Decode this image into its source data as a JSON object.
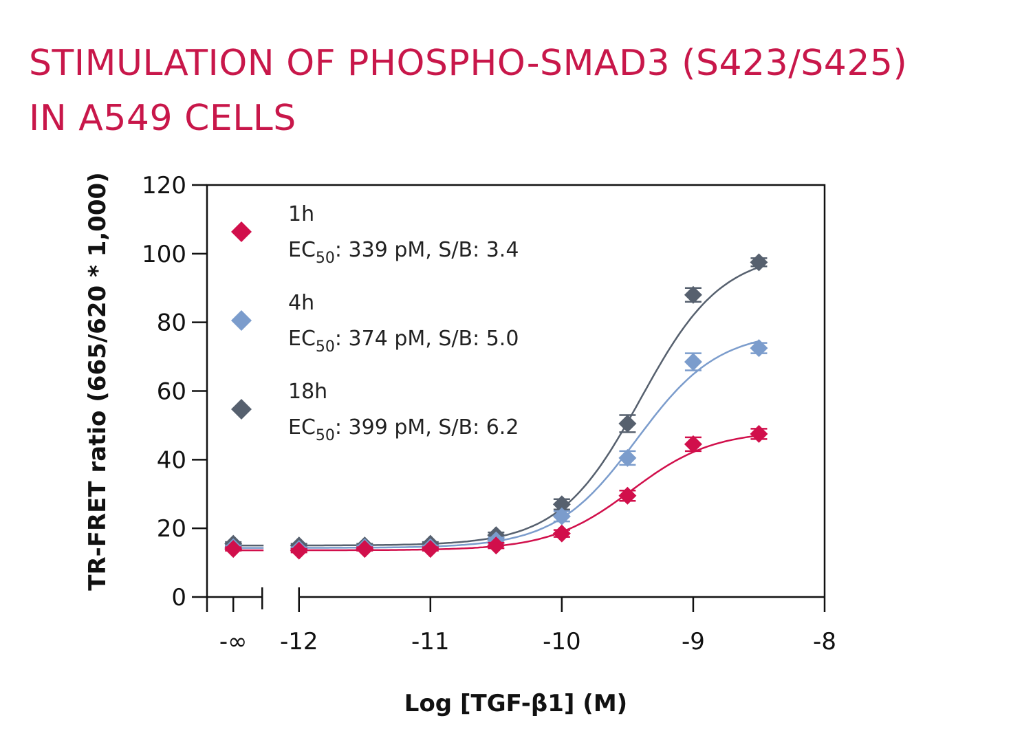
{
  "chart_data": {
    "type": "scatter",
    "title_lines": [
      "STIMULATION OF PHOSPHO-SMAD3 (S423/S425)",
      "IN A549 CELLS"
    ],
    "title_color": "#c8174a",
    "xlabel": "Log [TGF-β1] (M)",
    "ylabel": "TR-FRET ratio (665/620 * 1,000)",
    "xlim": [
      -12.7,
      -8
    ],
    "ylim": [
      0,
      120
    ],
    "y_ticks": [
      0,
      20,
      40,
      60,
      80,
      100,
      120
    ],
    "x_ticks": [
      {
        "value": -12.5,
        "label": "-∞"
      },
      {
        "value": -12,
        "label": "-12"
      },
      {
        "value": -11,
        "label": "-11"
      },
      {
        "value": -10,
        "label": "-10"
      },
      {
        "value": -9,
        "label": "-9"
      },
      {
        "value": -8,
        "label": "-8"
      }
    ],
    "x_break_after": -12.5,
    "x": [
      -12.5,
      -12,
      -11.5,
      -11,
      -10.5,
      -10,
      -9.5,
      -9,
      -8.5
    ],
    "series": [
      {
        "name": "1h",
        "ec50_text": "339 pM, S/B: 3.4",
        "color": "#d10f4b",
        "values": [
          14,
          13.5,
          14,
          14,
          15,
          18.5,
          29.5,
          44.5,
          47.5
        ],
        "errors": [
          0.5,
          0.5,
          0.5,
          0.5,
          0.8,
          1.0,
          1.5,
          2.0,
          1.5
        ],
        "fit": {
          "bottom": 13.6,
          "top": 48.5,
          "logec50": -9.47,
          "hill": 1.4
        }
      },
      {
        "name": "4h",
        "ec50_text": "374 pM, S/B: 5.0",
        "color": "#7b9ccc",
        "values": [
          14.5,
          14,
          14.5,
          14.5,
          16.5,
          23.5,
          40.5,
          68.5,
          72.5
        ],
        "errors": [
          0.5,
          0.5,
          0.5,
          0.5,
          0.8,
          1.5,
          2.0,
          2.5,
          1.5
        ],
        "fit": {
          "bottom": 14.3,
          "top": 77.5,
          "logec50": -9.43,
          "hill": 1.4
        }
      },
      {
        "name": "18h",
        "ec50_text": "399 pM, S/B: 6.2",
        "color": "#56606e",
        "values": [
          15.5,
          15,
          15,
          15.5,
          18,
          27,
          50.5,
          88,
          97.5
        ],
        "errors": [
          0.5,
          0.5,
          0.5,
          0.5,
          0.8,
          1.5,
          2.5,
          2.0,
          1.2
        ],
        "fit": {
          "bottom": 15.0,
          "top": 100.5,
          "logec50": -9.4,
          "hill": 1.4
        }
      }
    ],
    "legend_ec50_prefix": "EC",
    "legend_ec50_sub": "50",
    "legend_ec50_sep": ": "
  }
}
